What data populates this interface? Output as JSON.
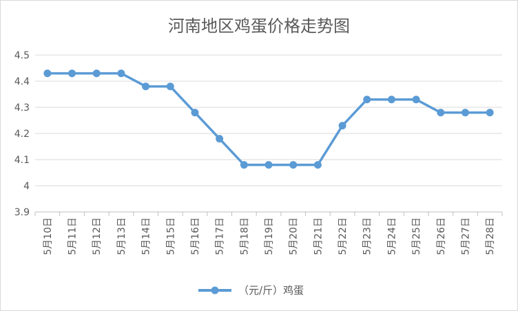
{
  "chart_data": {
    "type": "line",
    "title": "河南地区鸡蛋价格走势图",
    "xlabel": "",
    "ylabel": "",
    "categories": [
      "5月10日",
      "5月11日",
      "5月12日",
      "5月13日",
      "5月14日",
      "5月15日",
      "5月16日",
      "5月17日",
      "5月18日",
      "5月19日",
      "5月20日",
      "5月21日",
      "5月22日",
      "5月23日",
      "5月24日",
      "5月25日",
      "5月26日",
      "5月27日",
      "5月28日"
    ],
    "series": [
      {
        "name": "（元/斤）鸡蛋",
        "values": [
          4.43,
          4.43,
          4.43,
          4.43,
          4.38,
          4.38,
          4.28,
          4.18,
          4.08,
          4.08,
          4.08,
          4.08,
          4.23,
          4.33,
          4.33,
          4.33,
          4.28,
          4.28,
          4.28
        ],
        "color": "#5b9bd5"
      }
    ],
    "ylim": [
      3.9,
      4.5
    ],
    "yticks": [
      "3.9",
      "4",
      "4.1",
      "4.2",
      "4.3",
      "4.4",
      "4.5"
    ],
    "grid": true,
    "legend_position": "bottom"
  }
}
